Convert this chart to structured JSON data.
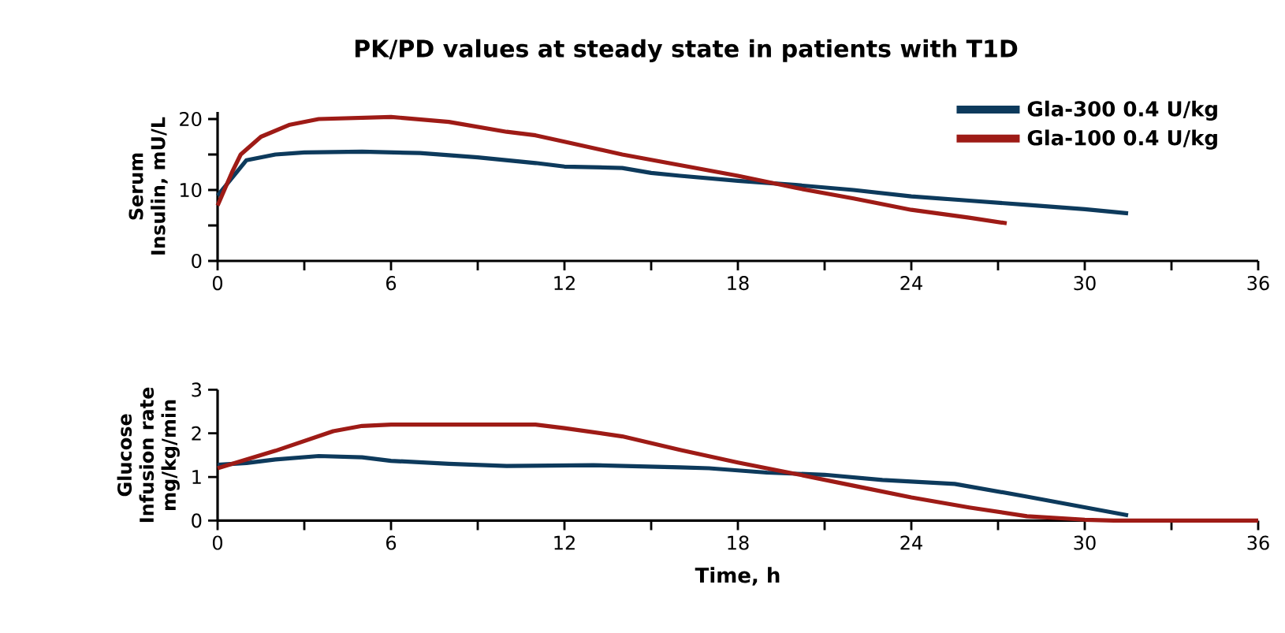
{
  "chart_data": [
    {
      "type": "line",
      "title": "PK/PD values at steady state in patients with T1D",
      "ylabel": "Serum Insulin, mU/L",
      "xlim": [
        0,
        36
      ],
      "ylim": [
        0,
        21
      ],
      "xticks": [
        0,
        {
          "value": 3,
          "label": null
        },
        6,
        {
          "value": 9,
          "label": null
        },
        12,
        {
          "value": 15,
          "label": null
        },
        18,
        {
          "value": 21,
          "label": null
        },
        24,
        {
          "value": 27,
          "label": null
        },
        30,
        {
          "value": 33,
          "label": null
        },
        36
      ],
      "yticks": [
        0,
        {
          "value": 5,
          "label": null
        },
        10,
        {
          "value": 15,
          "label": null
        },
        20
      ],
      "legend": "top right",
      "grid": false,
      "marker": "none",
      "line_style": "solid",
      "series": [
        {
          "name": "Gla-300 0.4 U/kg",
          "color": "#0d3a5c",
          "x": [
            0,
            1,
            2,
            3,
            5,
            7,
            9,
            11,
            12,
            14,
            15,
            16,
            18,
            20,
            22,
            24,
            26,
            28,
            30,
            31.5
          ],
          "values": [
            9.2,
            14.2,
            15,
            15.3,
            15.4,
            15.2,
            14.6,
            13.8,
            13.3,
            13.1,
            12.4,
            12,
            11.3,
            10.7,
            10,
            9.1,
            8.5,
            7.9,
            7.3,
            6.7
          ]
        },
        {
          "name": "Gla-100 0.4 U/kg",
          "color": "#9e1b16",
          "x": [
            0,
            0.5,
            0.8,
            1.5,
            2.5,
            3.5,
            6,
            8,
            10,
            11,
            12,
            14,
            16,
            18,
            20,
            22,
            24,
            26,
            27.3
          ],
          "values": [
            7.8,
            12.5,
            15,
            17.5,
            19.2,
            20,
            20.3,
            19.6,
            18.2,
            17.7,
            16.8,
            15,
            13.5,
            12,
            10.3,
            8.8,
            7.2,
            6.1,
            5.3
          ]
        }
      ]
    },
    {
      "type": "line",
      "ylabel": "Glucose Infusion rate mg/kg/min",
      "xlabel": "Time, h",
      "xlim": [
        0,
        36
      ],
      "ylim": [
        0,
        3
      ],
      "xticks": [
        0,
        {
          "value": 3,
          "label": null
        },
        6,
        {
          "value": 9,
          "label": null
        },
        12,
        {
          "value": 15,
          "label": null
        },
        18,
        {
          "value": 21,
          "label": null
        },
        24,
        {
          "value": 27,
          "label": null
        },
        30,
        {
          "value": 33,
          "label": null
        },
        36
      ],
      "yticks": [
        0,
        1,
        2,
        3
      ],
      "grid": false,
      "marker": "none",
      "line_style": "solid",
      "series": [
        {
          "color": "#0d3a5c",
          "x": [
            0,
            1,
            2,
            3.5,
            5,
            6,
            8,
            10,
            13,
            16,
            17,
            19,
            21,
            23,
            25.5,
            28,
            31.5
          ],
          "values": [
            1.28,
            1.32,
            1.4,
            1.48,
            1.45,
            1.37,
            1.3,
            1.25,
            1.27,
            1.22,
            1.2,
            1.1,
            1.05,
            0.93,
            0.84,
            0.55,
            0.12
          ]
        },
        {
          "color": "#9e1b16",
          "x": [
            0,
            2,
            4,
            5,
            6,
            11,
            12,
            14,
            16,
            18,
            20,
            22,
            24,
            26,
            28,
            30,
            31,
            36
          ],
          "values": [
            1.2,
            1.6,
            2.05,
            2.17,
            2.2,
            2.2,
            2.12,
            1.93,
            1.62,
            1.33,
            1.07,
            0.8,
            0.53,
            0.3,
            0.1,
            0.02,
            0,
            0
          ]
        }
      ]
    }
  ]
}
